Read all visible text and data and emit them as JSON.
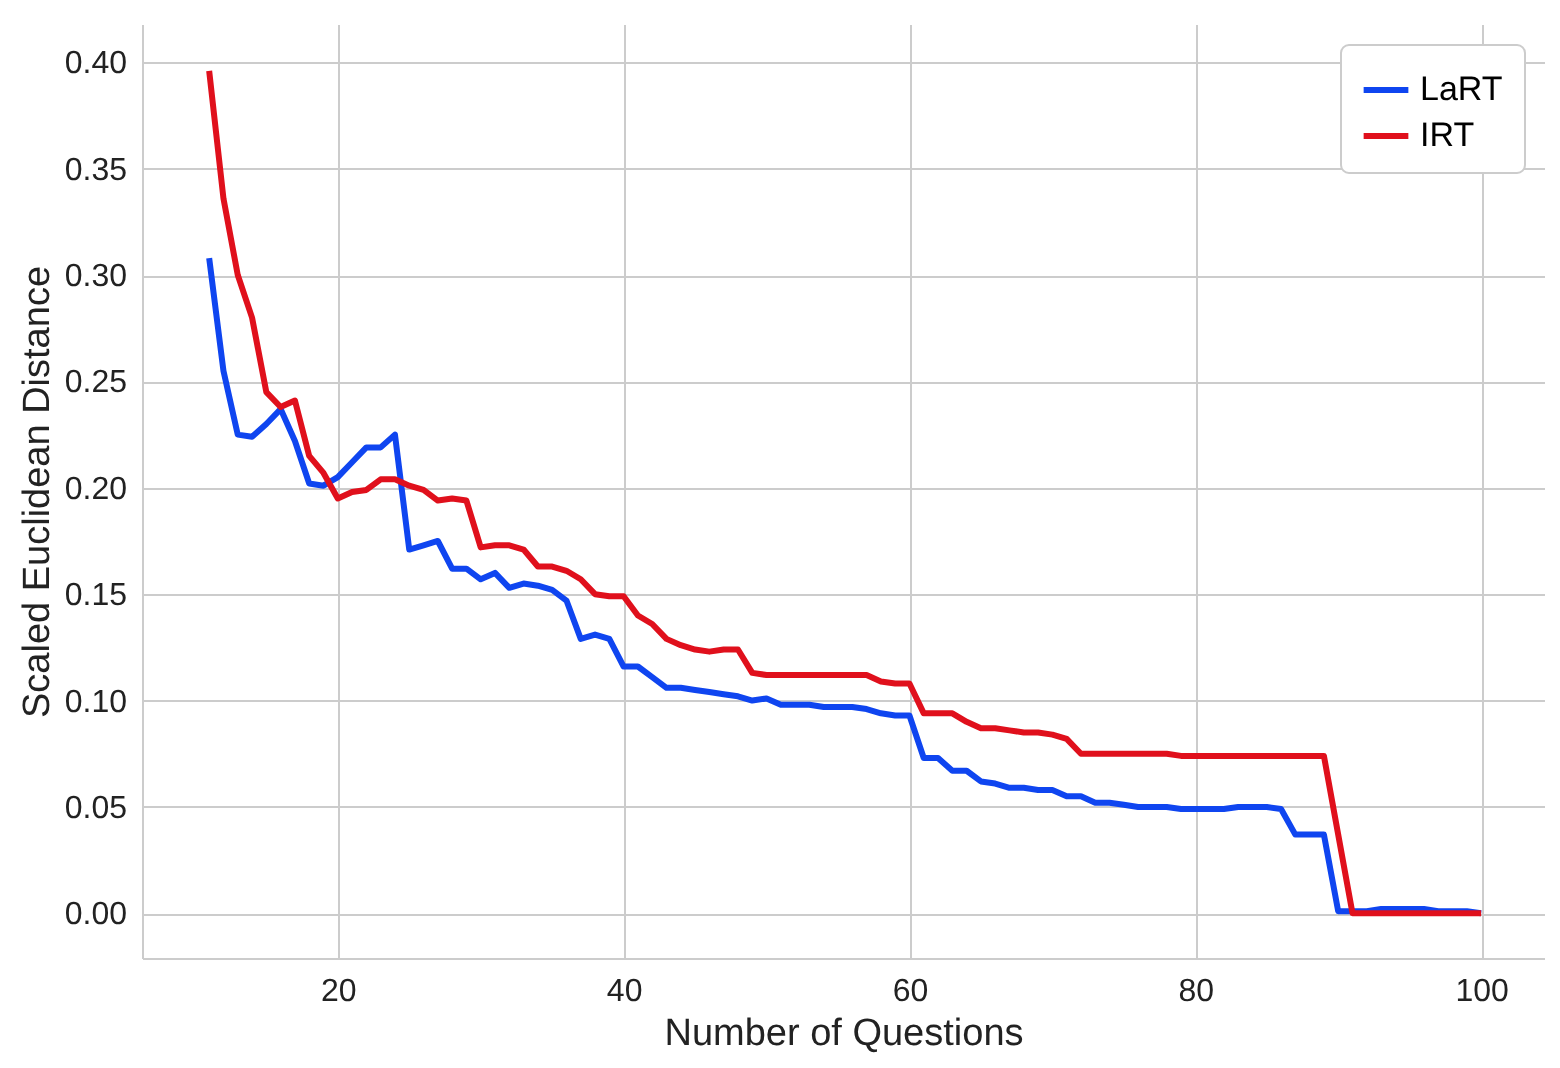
{
  "chart_data": {
    "type": "line",
    "xlabel": "Number of Questions",
    "ylabel": "Scaled Euclidean Distance",
    "x": [
      11,
      12,
      13,
      14,
      15,
      16,
      17,
      18,
      19,
      20,
      21,
      22,
      23,
      24,
      25,
      26,
      27,
      28,
      29,
      30,
      31,
      32,
      33,
      34,
      35,
      36,
      37,
      38,
      39,
      40,
      41,
      42,
      43,
      44,
      45,
      46,
      47,
      48,
      49,
      50,
      51,
      52,
      53,
      54,
      55,
      56,
      57,
      58,
      59,
      60,
      61,
      62,
      63,
      64,
      65,
      66,
      67,
      68,
      69,
      70,
      71,
      72,
      73,
      74,
      75,
      76,
      77,
      78,
      79,
      80,
      81,
      82,
      83,
      84,
      85,
      86,
      87,
      88,
      89,
      90,
      91,
      92,
      93,
      94,
      95,
      96,
      97,
      98,
      99,
      100
    ],
    "series": [
      {
        "name": "LaRT",
        "color": "#0f45f0",
        "values": [
          0.308,
          0.255,
          0.225,
          0.224,
          0.23,
          0.237,
          0.222,
          0.202,
          0.201,
          0.205,
          0.212,
          0.219,
          0.219,
          0.225,
          0.171,
          0.173,
          0.175,
          0.162,
          0.162,
          0.157,
          0.16,
          0.153,
          0.155,
          0.154,
          0.152,
          0.147,
          0.129,
          0.131,
          0.129,
          0.116,
          0.116,
          0.111,
          0.106,
          0.106,
          0.105,
          0.104,
          0.103,
          0.102,
          0.1,
          0.101,
          0.098,
          0.098,
          0.098,
          0.097,
          0.097,
          0.097,
          0.096,
          0.094,
          0.093,
          0.093,
          0.073,
          0.073,
          0.067,
          0.067,
          0.062,
          0.061,
          0.059,
          0.059,
          0.058,
          0.058,
          0.055,
          0.055,
          0.052,
          0.052,
          0.051,
          0.05,
          0.05,
          0.05,
          0.049,
          0.049,
          0.049,
          0.049,
          0.05,
          0.05,
          0.05,
          0.049,
          0.037,
          0.037,
          0.037,
          0.001,
          0.001,
          0.001,
          0.002,
          0.002,
          0.002,
          0.002,
          0.001,
          0.001,
          0.001,
          0.0
        ]
      },
      {
        "name": "IRT",
        "color": "#e0101c",
        "values": [
          0.396,
          0.336,
          0.3,
          0.28,
          0.245,
          0.238,
          0.241,
          0.215,
          0.207,
          0.195,
          0.198,
          0.199,
          0.204,
          0.204,
          0.201,
          0.199,
          0.194,
          0.195,
          0.194,
          0.172,
          0.173,
          0.173,
          0.171,
          0.163,
          0.163,
          0.161,
          0.157,
          0.15,
          0.149,
          0.149,
          0.14,
          0.136,
          0.129,
          0.126,
          0.124,
          0.123,
          0.124,
          0.124,
          0.113,
          0.112,
          0.112,
          0.112,
          0.112,
          0.112,
          0.112,
          0.112,
          0.112,
          0.109,
          0.108,
          0.108,
          0.094,
          0.094,
          0.094,
          0.09,
          0.087,
          0.087,
          0.086,
          0.085,
          0.085,
          0.084,
          0.082,
          0.075,
          0.075,
          0.075,
          0.075,
          0.075,
          0.075,
          0.075,
          0.074,
          0.074,
          0.074,
          0.074,
          0.074,
          0.074,
          0.074,
          0.074,
          0.074,
          0.074,
          0.074,
          0.037,
          0.0,
          0.0,
          0.0,
          0.0,
          0.0,
          0.0,
          0.0,
          0.0,
          0.0,
          0.0
        ]
      }
    ],
    "xlim": [
      6.3,
      104.4
    ],
    "ylim": [
      -0.021,
      0.418
    ],
    "xticks": [
      20,
      40,
      60,
      80,
      100
    ],
    "yticks": [
      {
        "value": 0,
        "label": "0.00"
      },
      {
        "value": 0.05,
        "label": "0.05"
      },
      {
        "value": 0.1,
        "label": "0.10"
      },
      {
        "value": 0.15,
        "label": "0.15"
      },
      {
        "value": 0.2,
        "label": "0.20"
      },
      {
        "value": 0.25,
        "label": "0.25"
      },
      {
        "value": 0.3,
        "label": "0.30"
      },
      {
        "value": 0.35,
        "label": "0.35"
      },
      {
        "value": 0.4,
        "label": "0.40"
      }
    ],
    "grid": true,
    "legend": "top right",
    "marker": "none",
    "line_style": "solid"
  }
}
